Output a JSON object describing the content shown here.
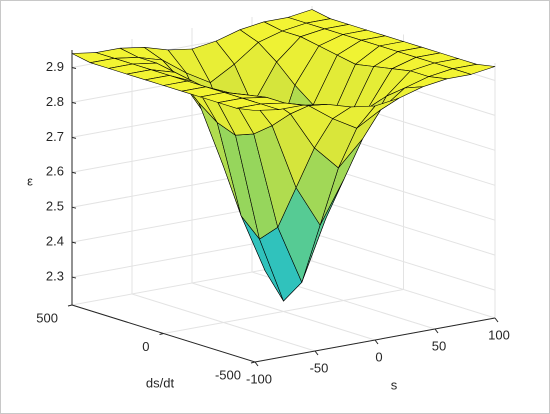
{
  "chart_data": {
    "type": "surface",
    "xlabel": "s",
    "ylabel": "ds/dt",
    "zlabel": "ε",
    "x": [
      -100,
      -80,
      -60,
      -40,
      -20,
      0,
      20,
      40,
      60,
      80,
      100
    ],
    "y": [
      -500,
      -400,
      -300,
      -200,
      -100,
      0,
      100,
      200,
      300,
      400,
      500
    ],
    "z": [
      [
        2.94,
        2.93,
        2.93,
        2.92,
        2.9,
        2.89,
        2.9,
        2.92,
        2.93,
        2.93,
        2.94
      ],
      [
        2.93,
        2.93,
        2.92,
        2.9,
        2.85,
        2.81,
        2.85,
        2.9,
        2.92,
        2.93,
        2.93
      ],
      [
        2.93,
        2.93,
        2.92,
        2.86,
        2.75,
        2.68,
        2.75,
        2.86,
        2.92,
        2.93,
        2.93
      ],
      [
        2.93,
        2.93,
        2.91,
        2.81,
        2.62,
        2.5,
        2.62,
        2.81,
        2.91,
        2.93,
        2.93
      ],
      [
        2.93,
        2.93,
        2.9,
        2.77,
        2.49,
        2.32,
        2.49,
        2.77,
        2.9,
        2.93,
        2.93
      ],
      [
        2.93,
        2.93,
        2.89,
        2.75,
        2.44,
        2.25,
        2.44,
        2.75,
        2.89,
        2.93,
        2.93
      ],
      [
        2.93,
        2.93,
        2.9,
        2.77,
        2.49,
        2.32,
        2.49,
        2.77,
        2.9,
        2.93,
        2.93
      ],
      [
        2.93,
        2.93,
        2.91,
        2.81,
        2.62,
        2.5,
        2.62,
        2.81,
        2.91,
        2.93,
        2.93
      ],
      [
        2.93,
        2.93,
        2.92,
        2.86,
        2.75,
        2.68,
        2.75,
        2.86,
        2.92,
        2.93,
        2.93
      ],
      [
        2.93,
        2.93,
        2.92,
        2.9,
        2.85,
        2.81,
        2.85,
        2.9,
        2.92,
        2.93,
        2.93
      ],
      [
        2.94,
        2.93,
        2.93,
        2.92,
        2.9,
        2.89,
        2.9,
        2.92,
        2.93,
        2.93,
        2.94
      ]
    ],
    "xlim": [
      -100,
      100
    ],
    "xticks": [
      -100,
      -50,
      0,
      50,
      100
    ],
    "ylim": [
      -500,
      500
    ],
    "yticks": [
      -500,
      0,
      500
    ],
    "zlim": [
      2.22,
      2.95
    ],
    "zticks": [
      2.3,
      2.4,
      2.5,
      2.6,
      2.7,
      2.8,
      2.9
    ],
    "grid": true,
    "colormap": [
      "#1ab6dc",
      "#38c6b0",
      "#8fd460",
      "#d8e63a",
      "#f5f532"
    ]
  }
}
